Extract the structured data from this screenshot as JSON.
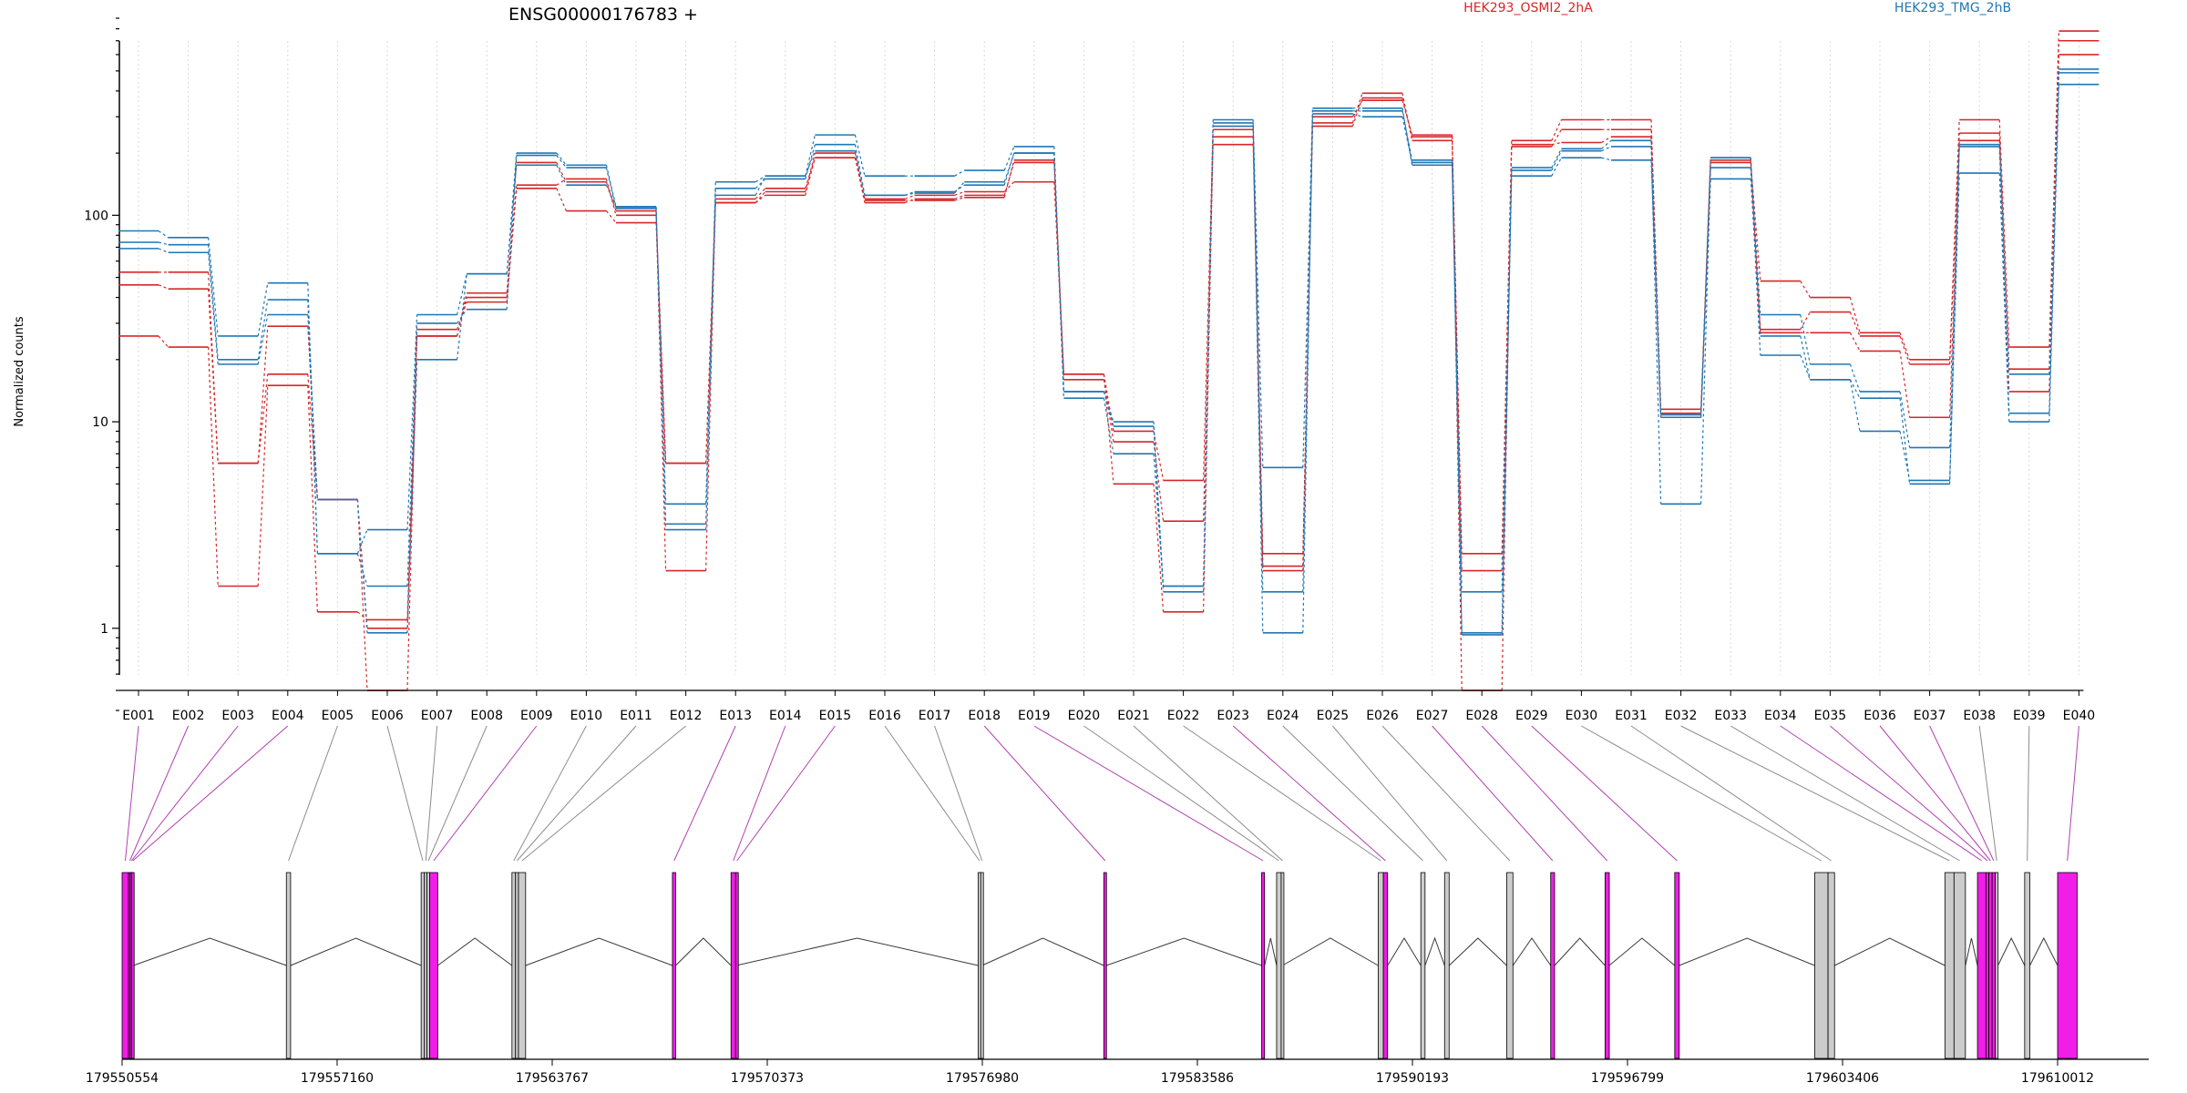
{
  "chart_data": {
    "type": "line",
    "title": "ENSG00000176783 +",
    "ylabel": "Normalized counts",
    "xlabel": "",
    "yscale": "log",
    "ylim": [
      0.4,
      900
    ],
    "grid": "vertical-dotted",
    "legend_placement": "top-right",
    "yticks": [
      {
        "value": 1,
        "label": "1"
      },
      {
        "value": 10,
        "label": "10"
      },
      {
        "value": 100,
        "label": "100"
      }
    ],
    "categories": [
      "E001",
      "E002",
      "E003",
      "E004",
      "E005",
      "E006",
      "E007",
      "E008",
      "E009",
      "E010",
      "E011",
      "E012",
      "E013",
      "E014",
      "E015",
      "E016",
      "E017",
      "E018",
      "E019",
      "E020",
      "E021",
      "E022",
      "E023",
      "E024",
      "E025",
      "E026",
      "E027",
      "E028",
      "E029",
      "E030",
      "E031",
      "E032",
      "E033",
      "E034",
      "E035",
      "E036",
      "E037",
      "E038",
      "E039",
      "E040"
    ],
    "series": [
      {
        "name": "HEK293_OSMI2_2hA",
        "color": "#d62728",
        "values": [
          53,
          53,
          6.3,
          29,
          4.2,
          1.0,
          26,
          40,
          140,
          150,
          100,
          6.3,
          115,
          125,
          190,
          115,
          120,
          125,
          180,
          17,
          9,
          5.2,
          260,
          2.3,
          270,
          370,
          240,
          2.3,
          230,
          290,
          290,
          11.5,
          180,
          48,
          40,
          27,
          20,
          290,
          23,
          780
        ]
      },
      {
        "series_group": "HEK293_OSMI2_2hA",
        "color": "#d62728",
        "values": [
          46,
          44,
          6.3,
          17,
          4.2,
          0.5,
          28,
          38,
          135,
          105,
          92,
          6.3,
          115,
          130,
          200,
          118,
          118,
          122,
          185,
          16,
          8,
          3.3,
          220,
          1.9,
          280,
          390,
          230,
          1.9,
          215,
          260,
          260,
          11,
          190,
          28,
          34,
          26,
          19,
          250,
          18,
          700
        ]
      },
      {
        "series_group": "HEK293_OSMI2_2hA",
        "color": "#d62728",
        "values": [
          26,
          23,
          1.6,
          15,
          1.2,
          1.1,
          26,
          42,
          180,
          145,
          105,
          1.9,
          120,
          135,
          190,
          120,
          125,
          130,
          145,
          17,
          5,
          1.2,
          240,
          2.0,
          300,
          360,
          245,
          0.5,
          220,
          225,
          240,
          10.5,
          185,
          27,
          27,
          22,
          10.5,
          230,
          14,
          600
        ]
      },
      {
        "name": "HEK293_TMG_2hB",
        "color": "#1f77b4",
        "values": [
          84,
          78,
          26,
          47,
          2.3,
          3.0,
          33,
          52,
          200,
          175,
          110,
          3.2,
          145,
          155,
          245,
          155,
          155,
          165,
          215,
          14,
          10,
          1.5,
          290,
          6.0,
          330,
          330,
          175,
          1.5,
          170,
          210,
          230,
          10.8,
          190,
          33,
          19,
          14,
          7.5,
          220,
          17,
          510
        ]
      },
      {
        "series_group": "HEK293_TMG_2hB",
        "color": "#1f77b4",
        "values": [
          74,
          72,
          20,
          39,
          2.3,
          1.6,
          30,
          35,
          195,
          170,
          108,
          4.0,
          135,
          150,
          220,
          125,
          130,
          140,
          200,
          14,
          9.5,
          1.6,
          280,
          1.5,
          320,
          320,
          185,
          0.95,
          165,
          205,
          215,
          4.0,
          170,
          21,
          16,
          13,
          5.0,
          215,
          11,
          490
        ]
      },
      {
        "series_group": "HEK293_TMG_2hB",
        "color": "#1f77b4",
        "values": [
          69,
          66,
          19,
          33,
          4.2,
          0.95,
          20,
          52,
          175,
          140,
          110,
          3.0,
          125,
          155,
          205,
          125,
          128,
          145,
          200,
          13,
          7,
          1.6,
          270,
          0.95,
          310,
          300,
          180,
          0.93,
          155,
          190,
          185,
          10.5,
          150,
          26,
          16,
          9,
          5.2,
          160,
          10,
          430
        ]
      }
    ]
  },
  "legend": {
    "entries": [
      {
        "label": "HEK293_OSMI2_2hA",
        "color": "#d62728"
      },
      {
        "label": "HEK293_TMG_2hB",
        "color": "#1f77b4"
      }
    ]
  },
  "gene_model": {
    "coordinate_ticks": [
      "179550554",
      "179557160",
      "179563767",
      "179570373",
      "179576980",
      "179583586",
      "179590193",
      "179596799",
      "179603406",
      "179610012"
    ],
    "tick_values": [
      179550554,
      179557160,
      179563767,
      179570373,
      179576980,
      179583586,
      179590193,
      179596799,
      179603406,
      179610012
    ],
    "colors": {
      "coding": "#f01ee6",
      "noncoding": "#cccccc",
      "edge": "#000000",
      "link_coding": "#b040b0",
      "link_noncoding": "#8c8c8c"
    },
    "exons": [
      {
        "start": 179550554,
        "end": 179550750,
        "type": "coding"
      },
      {
        "start": 179550750,
        "end": 179550800,
        "type": "coding"
      },
      {
        "start": 179550800,
        "end": 179550840,
        "type": "coding"
      },
      {
        "start": 179550840,
        "end": 179550900,
        "type": "coding"
      },
      {
        "start": 179555600,
        "end": 179555730,
        "type": "noncoding"
      },
      {
        "start": 179559740,
        "end": 179559840,
        "type": "noncoding"
      },
      {
        "start": 179559840,
        "end": 179559920,
        "type": "noncoding"
      },
      {
        "start": 179559920,
        "end": 179560000,
        "type": "noncoding"
      },
      {
        "start": 179560000,
        "end": 179560250,
        "type": "coding"
      },
      {
        "start": 179562530,
        "end": 179562640,
        "type": "noncoding"
      },
      {
        "start": 179562640,
        "end": 179562730,
        "type": "noncoding"
      },
      {
        "start": 179562730,
        "end": 179562950,
        "type": "noncoding"
      },
      {
        "start": 179567460,
        "end": 179567560,
        "type": "coding"
      },
      {
        "start": 179569260,
        "end": 179569400,
        "type": "coding"
      },
      {
        "start": 179569400,
        "end": 179569420,
        "type": "coding"
      },
      {
        "start": 179576850,
        "end": 179576930,
        "type": "noncoding"
      },
      {
        "start": 179576930,
        "end": 179576970,
        "type": "noncoding"
      },
      {
        "start": 179580710,
        "end": 179580790,
        "type": "coding"
      },
      {
        "start": 179585560,
        "end": 179585650,
        "type": "coding"
      },
      {
        "start": 179586020,
        "end": 179586160,
        "type": "noncoding"
      },
      {
        "start": 179586160,
        "end": 179586200,
        "type": "noncoding"
      },
      {
        "start": 179589140,
        "end": 179589300,
        "type": "noncoding"
      },
      {
        "start": 179589300,
        "end": 179589430,
        "type": "coding"
      },
      {
        "start": 179590450,
        "end": 179590580,
        "type": "noncoding"
      },
      {
        "start": 179591180,
        "end": 179591320,
        "type": "noncoding"
      },
      {
        "start": 179593090,
        "end": 179593280,
        "type": "noncoding"
      },
      {
        "start": 179594440,
        "end": 179594560,
        "type": "coding"
      },
      {
        "start": 179596110,
        "end": 179596240,
        "type": "coding"
      },
      {
        "start": 179598250,
        "end": 179598390,
        "type": "coding"
      },
      {
        "start": 179602550,
        "end": 179602960,
        "type": "noncoding"
      },
      {
        "start": 179602960,
        "end": 179603160,
        "type": "noncoding"
      },
      {
        "start": 179606550,
        "end": 179606830,
        "type": "noncoding"
      },
      {
        "start": 179606830,
        "end": 179607180,
        "type": "noncoding"
      },
      {
        "start": 179607550,
        "end": 179607810,
        "type": "coding"
      },
      {
        "start": 179607810,
        "end": 179607900,
        "type": "coding"
      },
      {
        "start": 179607900,
        "end": 179608000,
        "type": "coding"
      },
      {
        "start": 179608000,
        "end": 179608100,
        "type": "coding"
      },
      {
        "start": 179608100,
        "end": 179608180,
        "type": "noncoding"
      },
      {
        "start": 179609000,
        "end": 179609160,
        "type": "noncoding"
      },
      {
        "start": 179610012,
        "end": 179610612,
        "type": "coding"
      }
    ]
  }
}
